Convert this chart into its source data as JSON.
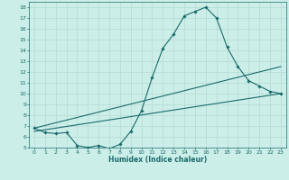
{
  "bg_color": "#cceee8",
  "grid_color": "#b8ddd8",
  "line_color": "#1a6b6b",
  "marker_color": "#1a6b6b",
  "xlabel": "Humidex (Indice chaleur)",
  "xlim": [
    -0.5,
    23.5
  ],
  "ylim": [
    5,
    18.5
  ],
  "yticks": [
    5,
    6,
    7,
    8,
    9,
    10,
    11,
    12,
    13,
    14,
    15,
    16,
    17,
    18
  ],
  "xticks": [
    0,
    1,
    2,
    3,
    4,
    5,
    6,
    7,
    8,
    9,
    10,
    11,
    12,
    13,
    14,
    15,
    16,
    17,
    18,
    19,
    20,
    21,
    22,
    23
  ],
  "curve1_x": [
    0,
    1,
    2,
    3,
    4,
    5,
    6,
    7,
    8,
    9,
    10,
    11,
    12,
    13,
    14,
    15,
    16,
    17,
    18,
    19,
    20,
    21,
    22,
    23
  ],
  "curve1_y": [
    6.8,
    6.4,
    6.3,
    6.4,
    5.2,
    5.0,
    5.2,
    4.9,
    5.3,
    6.5,
    8.4,
    11.5,
    14.2,
    15.5,
    17.2,
    17.6,
    18.0,
    17.0,
    14.3,
    12.5,
    11.2,
    10.7,
    10.2,
    10.0
  ],
  "curve2_x": [
    0,
    23
  ],
  "curve2_y": [
    6.8,
    12.5
  ],
  "curve3_x": [
    0,
    23
  ],
  "curve3_y": [
    6.5,
    10.0
  ],
  "xlabel_fontsize": 5.5,
  "tick_fontsize": 4.5,
  "linewidth": 0.8,
  "markersize": 1.8
}
